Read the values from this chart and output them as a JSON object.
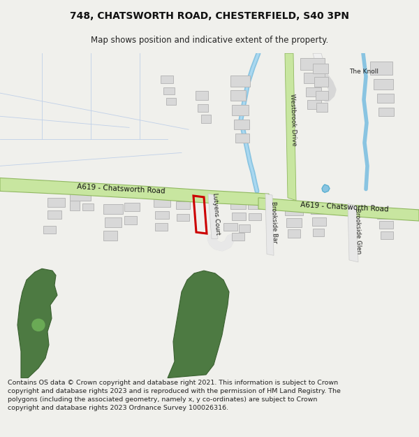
{
  "title": "748, CHATSWORTH ROAD, CHESTERFIELD, S40 3PN",
  "subtitle": "Map shows position and indicative extent of the property.",
  "footer": "Contains OS data © Crown copyright and database right 2021. This information is subject to Crown copyright and database rights 2023 and is reproduced with the permission of HM Land Registry. The polygons (including the associated geometry, namely x, y co-ordinates) are subject to Crown copyright and database rights 2023 Ordnance Survey 100026316.",
  "bg_color": "#f0f0ec",
  "map_bg": "#ffffff",
  "road_fill": "#c8e6a0",
  "road_edge": "#90b860",
  "road_text": "#111111",
  "water_color": "#89c4e1",
  "building_fill": "#d8d8d8",
  "building_edge": "#b8b8b8",
  "green_fill": "#4d7a42",
  "green_edge": "#3a6030",
  "highlight": "#cc0000",
  "cadastral_line": "#c0d0e8",
  "minor_road_fill": "#e8e8e8",
  "minor_road_edge": "#cccccc",
  "title_fs": 10,
  "subtitle_fs": 8.5,
  "footer_fs": 6.8
}
